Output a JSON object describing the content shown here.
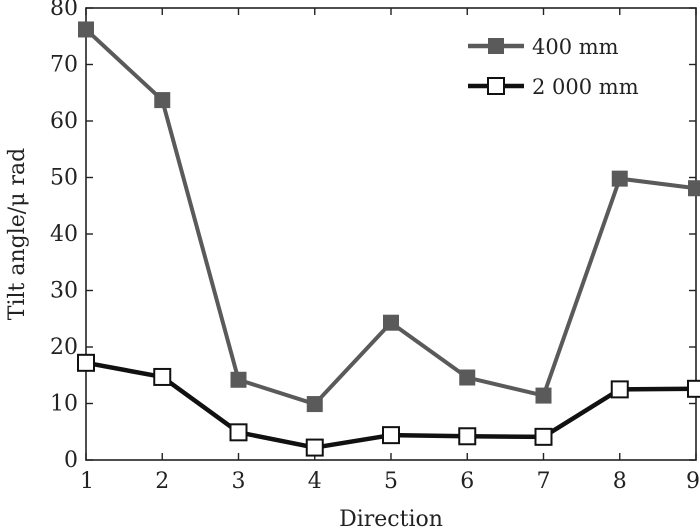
{
  "chart_data": {
    "type": "line",
    "title": "",
    "xlabel": "Direction",
    "ylabel": "Tilt angle/μ rad",
    "x": [
      1,
      2,
      3,
      4,
      5,
      6,
      7,
      8,
      9
    ],
    "xlim": [
      1,
      9
    ],
    "ylim": [
      0,
      80
    ],
    "xticks": [
      "1",
      "2",
      "3",
      "4",
      "5",
      "6",
      "7",
      "8",
      "9"
    ],
    "yticks": [
      "0",
      "10",
      "20",
      "30",
      "40",
      "50",
      "60",
      "70",
      "80"
    ],
    "grid": false,
    "legend_position": "top-right",
    "series": [
      {
        "name": "400 mm",
        "values": [
          76.2,
          63.7,
          14.2,
          9.9,
          24.3,
          14.6,
          11.4,
          49.8,
          48.1
        ],
        "color": "#5a5a5a",
        "marker": "filled-square"
      },
      {
        "name": "2 000 mm",
        "values": [
          17.2,
          14.7,
          4.9,
          2.2,
          4.4,
          4.2,
          4.1,
          12.5,
          12.6
        ],
        "color": "#111111",
        "marker": "open-square"
      }
    ]
  }
}
